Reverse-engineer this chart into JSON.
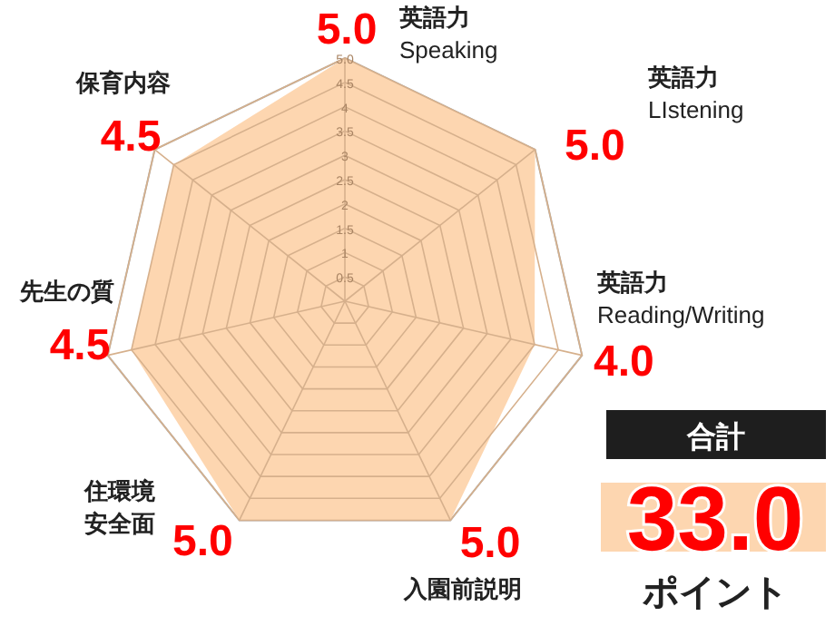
{
  "chart_data": {
    "type": "radar",
    "categories": [
      "英語力\nSpeaking",
      "英語力\nLIstening",
      "英語力\nReading/Writing",
      "入園前説明",
      "住環境安全面",
      "先生の質",
      "保育内容"
    ],
    "series": [
      {
        "color": "#fdd6b0",
        "values": [
          5,
          5,
          4,
          5,
          5,
          4.5,
          4.5
        ],
        "value_labels": [
          "5.0",
          "5.0",
          "4.0",
          "5.0",
          "5.0",
          "4.5",
          "4.5"
        ]
      }
    ],
    "ylim": [
      0,
      5
    ],
    "yticks": [
      0.5,
      1,
      1.5,
      2,
      2.5,
      3,
      3.5,
      4,
      4.5,
      {
        "value": 5,
        "label": "5.0"
      }
    ],
    "grid": true,
    "annotations": [
      "合計",
      "33.0",
      "ポイント"
    ]
  }
}
